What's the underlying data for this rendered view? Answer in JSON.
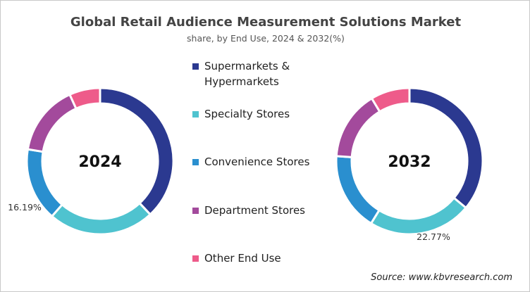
{
  "chart_data": [
    {
      "type": "pie",
      "donut": true,
      "center_label": "2024",
      "categories": [
        "Supermarkets & Hypermarkets",
        "Specialty Stores",
        "Convenience Stores",
        "Department Stores",
        "Other End Use"
      ],
      "values": [
        38.0,
        23.4,
        16.19,
        15.6,
        6.8
      ],
      "data_labels": [
        {
          "category": "Convenience Stores",
          "text": "16.19%"
        }
      ]
    },
    {
      "type": "pie",
      "donut": true,
      "center_label": "2032",
      "categories": [
        "Supermarkets & Hypermarkets",
        "Specialty Stores",
        "Convenience Stores",
        "Department Stores",
        "Other End Use"
      ],
      "values": [
        36.0,
        22.77,
        17.3,
        15.3,
        8.6
      ],
      "data_labels": [
        {
          "category": "Specialty Stores",
          "text": "22.77%"
        }
      ]
    }
  ],
  "title": "Global Retail Audience Measurement Solutions Market",
  "subtitle": "share, by End Use, 2024 & 2032(%)",
  "legend": [
    {
      "label": "Supermarkets &\nHypermarkets",
      "color": "#2b3990"
    },
    {
      "label": "Specialty Stores",
      "color": "#4fc3cf"
    },
    {
      "label": "Convenience Stores",
      "color": "#2a8fcf"
    },
    {
      "label": "Department Stores",
      "color": "#a34a9c"
    },
    {
      "label": "Other End Use",
      "color": "#ee5b8a"
    }
  ],
  "source": "Source: www.kbvresearch.com"
}
